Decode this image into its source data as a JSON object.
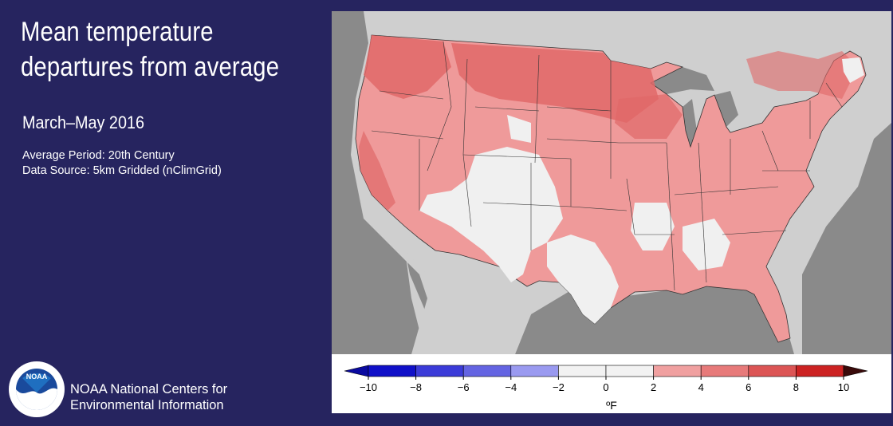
{
  "title_line1": "Mean temperature",
  "title_line2": "departures from average",
  "period": "March–May 2016",
  "average_period": "Average Period: 20th Century",
  "data_source": "Data Source: 5km Gridded (nClimGrid)",
  "logo_text": "NOAA",
  "org_line1": "NOAA National Centers for",
  "org_line2": "Environmental Information",
  "legend": {
    "ticks": [
      "−10",
      "−8",
      "−6",
      "−4",
      "−2",
      "0",
      "2",
      "4",
      "6",
      "8",
      "10"
    ],
    "colors": [
      "#1010c8",
      "#3b3bd8",
      "#6464e2",
      "#9a9af0",
      "#f2f2f2",
      "#f2f2f2",
      "#f0a0a0",
      "#e77a7a",
      "#dc5555",
      "#cc2222"
    ],
    "low_arrow_color": "#0a0aa0",
    "high_arrow_color": "#3a0a0a",
    "unit": "ºF"
  },
  "map_colors": {
    "ocean_land_bg": "#cfcfcf",
    "water": "#8a8a8a",
    "neutral": "#f0f0f0",
    "warm": "#ef9a9a",
    "warmer": "#e06868"
  }
}
